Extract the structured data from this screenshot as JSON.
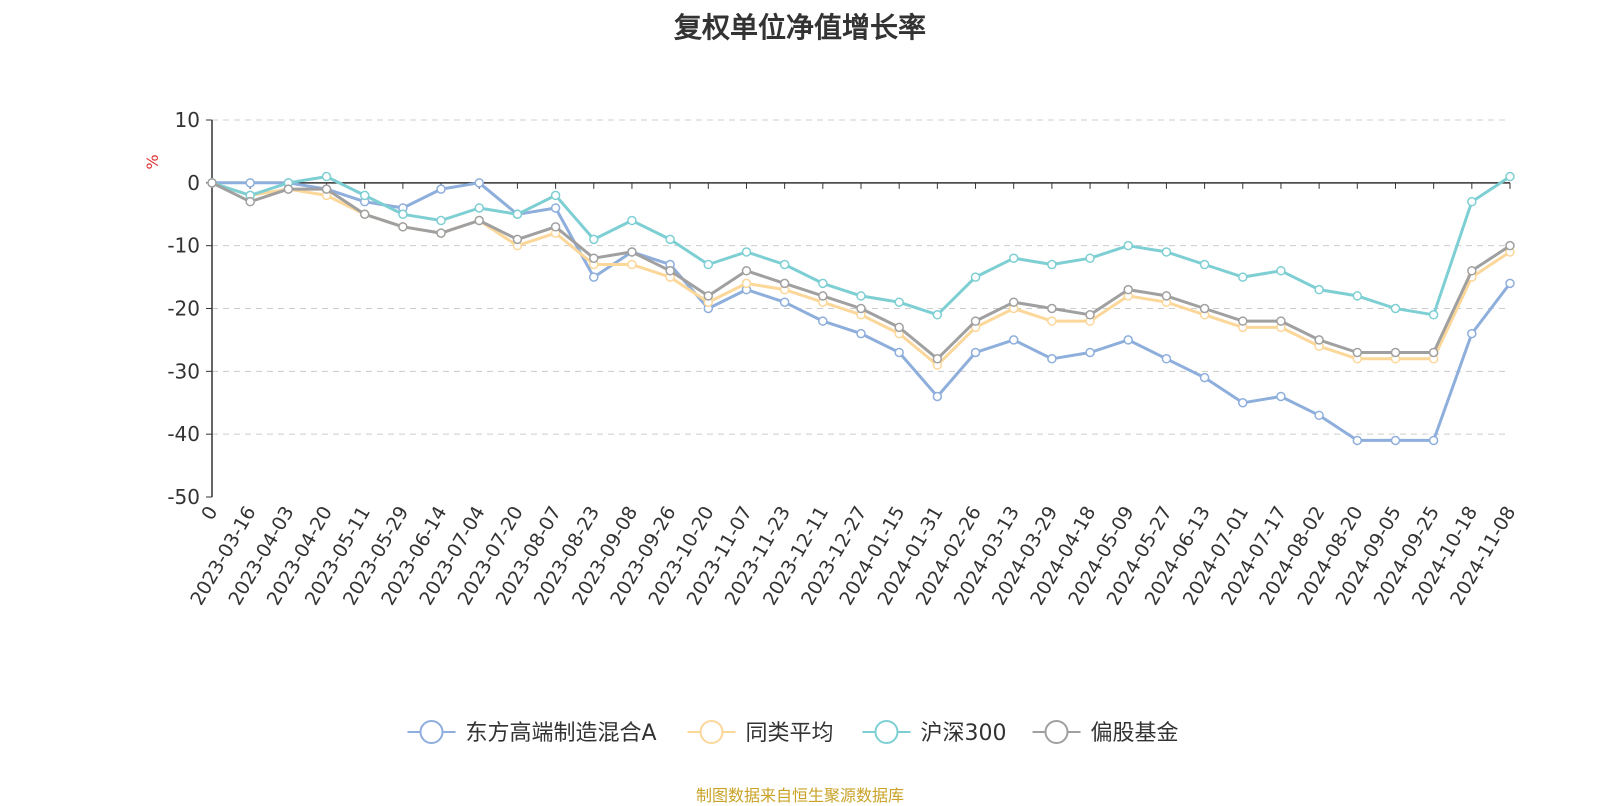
{
  "chart_data": {
    "type": "line",
    "title": "复权单位净值增长率",
    "ylabel": "%",
    "xlabel": "",
    "ylim": [
      -50,
      10
    ],
    "yticks": [
      10,
      0,
      -10,
      -20,
      -30,
      -40,
      -50
    ],
    "grid": true,
    "legend": "bottom",
    "categories": [
      "0",
      "2023-03-16",
      "2023-04-03",
      "2023-04-20",
      "2023-05-11",
      "2023-05-29",
      "2023-06-14",
      "2023-07-04",
      "2023-07-20",
      "2023-08-07",
      "2023-08-23",
      "2023-09-08",
      "2023-09-26",
      "2023-10-20",
      "2023-11-07",
      "2023-11-23",
      "2023-12-11",
      "2023-12-27",
      "2024-01-15",
      "2024-01-31",
      "2024-02-26",
      "2024-03-13",
      "2024-03-29",
      "2024-04-18",
      "2024-05-09",
      "2024-05-27",
      "2024-06-13",
      "2024-07-01",
      "2024-07-17",
      "2024-08-02",
      "2024-08-20",
      "2024-09-05",
      "2024-09-25",
      "2024-10-18",
      "2024-11-08"
    ],
    "series": [
      {
        "name": "东方高端制造混合A",
        "color": "#8eaedc",
        "values": [
          0,
          0,
          0,
          -1,
          -3,
          -4,
          -1,
          0,
          -5,
          -4,
          -15,
          -11,
          -13,
          -20,
          -17,
          -19,
          -22,
          -24,
          -27,
          -34,
          -27,
          -25,
          -28,
          -27,
          -25,
          -28,
          -31,
          -35,
          -34,
          -37,
          -41,
          -41,
          -41,
          -24,
          -16
        ]
      },
      {
        "name": "同类平均",
        "color": "#fcd79a",
        "values": [
          0,
          -2,
          -1,
          -2,
          -5,
          -7,
          -8,
          -6,
          -10,
          -8,
          -13,
          -13,
          -15,
          -19,
          -16,
          -17,
          -19,
          -21,
          -24,
          -29,
          -23,
          -20,
          -22,
          -22,
          -18,
          -19,
          -21,
          -23,
          -23,
          -26,
          -28,
          -28,
          -28,
          -15,
          -11
        ]
      },
      {
        "name": "沪深300",
        "color": "#7ecfd3",
        "values": [
          0,
          -2,
          0,
          1,
          -2,
          -5,
          -6,
          -4,
          -5,
          -2,
          -9,
          -6,
          -9,
          -13,
          -11,
          -13,
          -16,
          -18,
          -19,
          -21,
          -15,
          -12,
          -13,
          -12,
          -10,
          -11,
          -13,
          -15,
          -14,
          -17,
          -18,
          -20,
          -21,
          -3,
          1
        ]
      },
      {
        "name": "偏股基金",
        "color": "#a0a0a0",
        "values": [
          0,
          -3,
          -1,
          -1,
          -5,
          -7,
          -8,
          -6,
          -9,
          -7,
          -12,
          -11,
          -14,
          -18,
          -14,
          -16,
          -18,
          -20,
          -23,
          -28,
          -22,
          -19,
          -20,
          -21,
          -17,
          -18,
          -20,
          -22,
          -22,
          -25,
          -27,
          -27,
          -27,
          -14,
          -10
        ]
      }
    ]
  },
  "source_note": "制图数据来自恒生聚源数据库"
}
